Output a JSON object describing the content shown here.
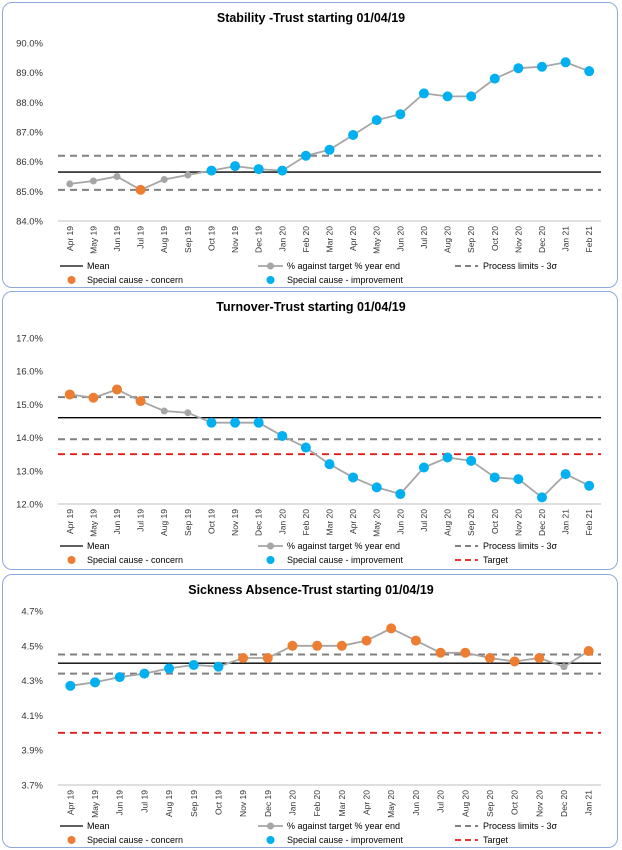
{
  "colors": {
    "mean": "#000000",
    "series": "#a6a6a6",
    "limits": "#808080",
    "target": "#e31a1c",
    "concern": "#ed7d31",
    "improvement": "#00b0f0"
  },
  "legend": {
    "mean": "Mean",
    "series": "% against target % year end",
    "limits": "Process limits - 3σ",
    "concern": "Special cause - concern",
    "improvement": "Special cause - improvement",
    "target": "Target"
  },
  "chart_data": [
    {
      "type": "line",
      "title": "Stability -Trust starting 01/04/19",
      "categories": [
        "Apr 19",
        "May 19",
        "Jun 19",
        "Jul 19",
        "Aug 19",
        "Sep 19",
        "Oct 19",
        "Nov 19",
        "Dec 19",
        "Jan 20",
        "Feb 20",
        "Mar 20",
        "Apr 20",
        "May 20",
        "Jun 20",
        "Jul 20",
        "Aug 20",
        "Sep 20",
        "Oct 20",
        "Nov 20",
        "Dec 20",
        "Jan 21",
        "Feb 21"
      ],
      "values": [
        85.25,
        85.35,
        85.5,
        85.05,
        85.4,
        85.55,
        85.7,
        85.85,
        85.75,
        85.7,
        86.2,
        86.4,
        86.9,
        87.4,
        87.6,
        88.3,
        88.2,
        88.2,
        88.8,
        89.15,
        89.2,
        89.35,
        89.05
      ],
      "markers": [
        "none",
        "none",
        "none",
        "concern",
        "none",
        "none",
        "improvement",
        "improvement",
        "improvement",
        "improvement",
        "improvement",
        "improvement",
        "improvement",
        "improvement",
        "improvement",
        "improvement",
        "improvement",
        "improvement",
        "improvement",
        "improvement",
        "improvement",
        "improvement",
        "improvement"
      ],
      "mean": 85.65,
      "limits": [
        85.05,
        86.2
      ],
      "target": null,
      "yticks": [
        84.0,
        85.0,
        86.0,
        87.0,
        88.0,
        89.0,
        90.0
      ],
      "ytick_labels": [
        "84.0%",
        "85.0%",
        "86.0%",
        "87.0%",
        "88.0%",
        "89.0%",
        "90.0%"
      ],
      "ylim": [
        84.0,
        90.0
      ],
      "legend_rows": [
        [
          "mean",
          "series",
          "limits"
        ],
        [
          "concern",
          "improvement"
        ]
      ]
    },
    {
      "type": "line",
      "title": "Turnover-Trust starting 01/04/19",
      "categories": [
        "Apr 19",
        "May 19",
        "Jun 19",
        "Jul 19",
        "Aug 19",
        "Sep 19",
        "Oct 19",
        "Nov 19",
        "Dec 19",
        "Jan 20",
        "Feb 20",
        "Mar 20",
        "Apr 20",
        "May 20",
        "Jun 20",
        "Jul 20",
        "Aug 20",
        "Sep 20",
        "Oct 20",
        "Nov 20",
        "Dec 20",
        "Jan 21",
        "Feb 21"
      ],
      "values": [
        15.3,
        15.2,
        15.45,
        15.1,
        14.8,
        14.75,
        14.45,
        14.45,
        14.45,
        14.05,
        13.7,
        13.2,
        12.8,
        12.5,
        12.3,
        13.1,
        13.4,
        13.3,
        12.8,
        12.75,
        12.2,
        12.9,
        12.55
      ],
      "markers": [
        "concern",
        "concern",
        "concern",
        "concern",
        "none",
        "none",
        "improvement",
        "improvement",
        "improvement",
        "improvement",
        "improvement",
        "improvement",
        "improvement",
        "improvement",
        "improvement",
        "improvement",
        "improvement",
        "improvement",
        "improvement",
        "improvement",
        "improvement",
        "improvement",
        "improvement"
      ],
      "mean": 14.6,
      "limits": [
        13.95,
        15.22
      ],
      "target": 13.5,
      "yticks": [
        12.0,
        13.0,
        14.0,
        15.0,
        16.0,
        17.0
      ],
      "ytick_labels": [
        "12.0%",
        "13.0%",
        "14.0%",
        "15.0%",
        "16.0%",
        "17.0%"
      ],
      "ylim": [
        12.0,
        17.0
      ],
      "legend_rows": [
        [
          "mean",
          "series",
          "limits"
        ],
        [
          "concern",
          "improvement",
          "target"
        ]
      ]
    },
    {
      "type": "line",
      "title": "Sickness Absence-Trust starting 01/04/19",
      "categories": [
        "Apr 19",
        "May 19",
        "Jun 19",
        "Jul 19",
        "Aug 19",
        "Sep 19",
        "Oct 19",
        "Nov 19",
        "Dec 19",
        "Jan 20",
        "Feb 20",
        "Mar 20",
        "Apr 20",
        "May 20",
        "Jun 20",
        "Jul 20",
        "Aug 20",
        "Sep 20",
        "Oct 20",
        "Nov 20",
        "Dec 20",
        "Jan 21"
      ],
      "values": [
        4.27,
        4.29,
        4.32,
        4.34,
        4.37,
        4.39,
        4.38,
        4.43,
        4.43,
        4.5,
        4.5,
        4.5,
        4.53,
        4.6,
        4.53,
        4.46,
        4.46,
        4.43,
        4.41,
        4.43,
        4.38,
        4.47
      ],
      "markers": [
        "improvement",
        "improvement",
        "improvement",
        "improvement",
        "improvement",
        "improvement",
        "improvement",
        "concern",
        "concern",
        "concern",
        "concern",
        "concern",
        "concern",
        "concern",
        "concern",
        "concern",
        "concern",
        "concern",
        "concern",
        "concern",
        "none",
        "concern"
      ],
      "mean": 4.4,
      "limits": [
        4.34,
        4.45
      ],
      "target": 4.0,
      "yticks": [
        3.7,
        3.9,
        4.1,
        4.3,
        4.5,
        4.7
      ],
      "ytick_labels": [
        "3.7%",
        "3.9%",
        "4.1%",
        "4.3%",
        "4.5%",
        "4.7%"
      ],
      "ylim": [
        3.7,
        4.7
      ],
      "legend_rows": [
        [
          "mean",
          "series",
          "limits"
        ],
        [
          "concern",
          "improvement",
          "target"
        ]
      ]
    }
  ]
}
